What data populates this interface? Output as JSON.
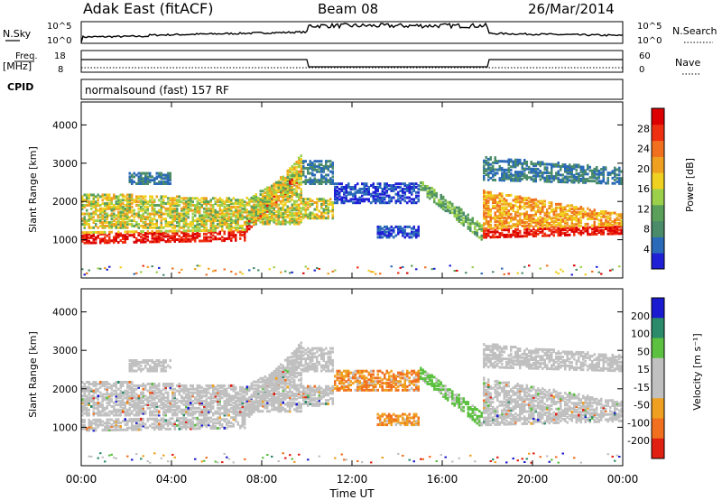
{
  "header": {
    "station": "Adak East (fitACF)",
    "beam": "Beam 08",
    "date": "26/Mar/2014"
  },
  "nsky_panel": {
    "left_label": "N.Sky",
    "right_label": "N.Search",
    "left_ticks": [
      "10^5",
      "10^0"
    ],
    "right_ticks": [
      "10^5",
      "10^0"
    ]
  },
  "freq_panel": {
    "left_label_top": "Freq.",
    "left_label_bottom": "[MHz]",
    "right_label": "Nave",
    "left_ticks": [
      "18",
      "8"
    ],
    "right_ticks": [
      "60",
      "0"
    ],
    "cpid_label": "CPID",
    "mode_text": "normalsound (fast) 157 RF"
  },
  "chart_data": [
    {
      "type": "heatmap",
      "name": "power",
      "ylabel": "Slant Range [km]",
      "y_ticks": [
        "1000",
        "2000",
        "3000",
        "4000"
      ],
      "ylim": [
        0,
        4600
      ],
      "xlim": [
        0,
        24
      ],
      "colorbar": {
        "label": "Power [dB]",
        "ticks": [
          "4",
          "8",
          "12",
          "16",
          "20",
          "24",
          "28"
        ],
        "colors": [
          "#1f1fd6",
          "#2a6ab8",
          "#4a8c6a",
          "#5aa05a",
          "#9bd04a",
          "#f0d020",
          "#f0a020",
          "#f07020",
          "#ee3010",
          "#dd0000"
        ]
      }
    },
    {
      "type": "heatmap",
      "name": "velocity",
      "ylabel": "Slant Range [km]",
      "y_ticks": [
        "1000",
        "2000",
        "3000",
        "4000"
      ],
      "ylim": [
        0,
        4600
      ],
      "xlim": [
        0,
        24
      ],
      "colorbar": {
        "label": "Velocity [m s⁻¹]",
        "ticks": [
          "200",
          "100",
          "50",
          "15",
          "-15",
          "-50",
          "-100",
          "-200"
        ],
        "colors": [
          "#1a1ad0",
          "#2a8a6a",
          "#5cc040",
          "#c0c0c0",
          "#c0c0c0",
          "#f0a020",
          "#f07020",
          "#e02010"
        ]
      }
    }
  ],
  "x_axis": {
    "ticks": [
      "00:00",
      "04:00",
      "08:00",
      "12:00",
      "16:00",
      "20:00",
      "00:00"
    ],
    "label": "Time UT"
  }
}
